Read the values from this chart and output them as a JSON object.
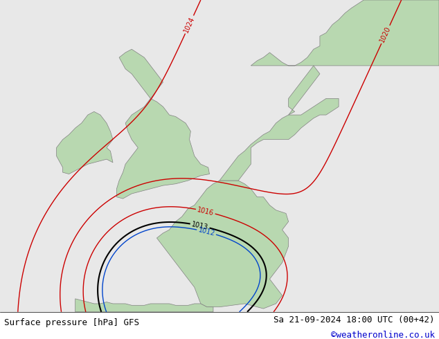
{
  "title_left": "Surface pressure [hPa] GFS",
  "title_right": "Sa 21-09-2024 18:00 UTC (00+42)",
  "copyright": "©weatheronline.co.uk",
  "bg_color": "#e8e8e8",
  "land_color": "#b8d8b0",
  "land_border_color": "#808080",
  "red_contour_color": "#cc0000",
  "black_contour_color": "#000000",
  "blue_contour_color": "#0044cc",
  "label_fontsize": 7,
  "title_fontsize": 9,
  "copyright_color": "#0000cc",
  "figsize": [
    6.34,
    4.9
  ],
  "dpi": 100,
  "lon_min": -15,
  "lon_max": 20,
  "lat_min": 43,
  "lat_max": 62
}
